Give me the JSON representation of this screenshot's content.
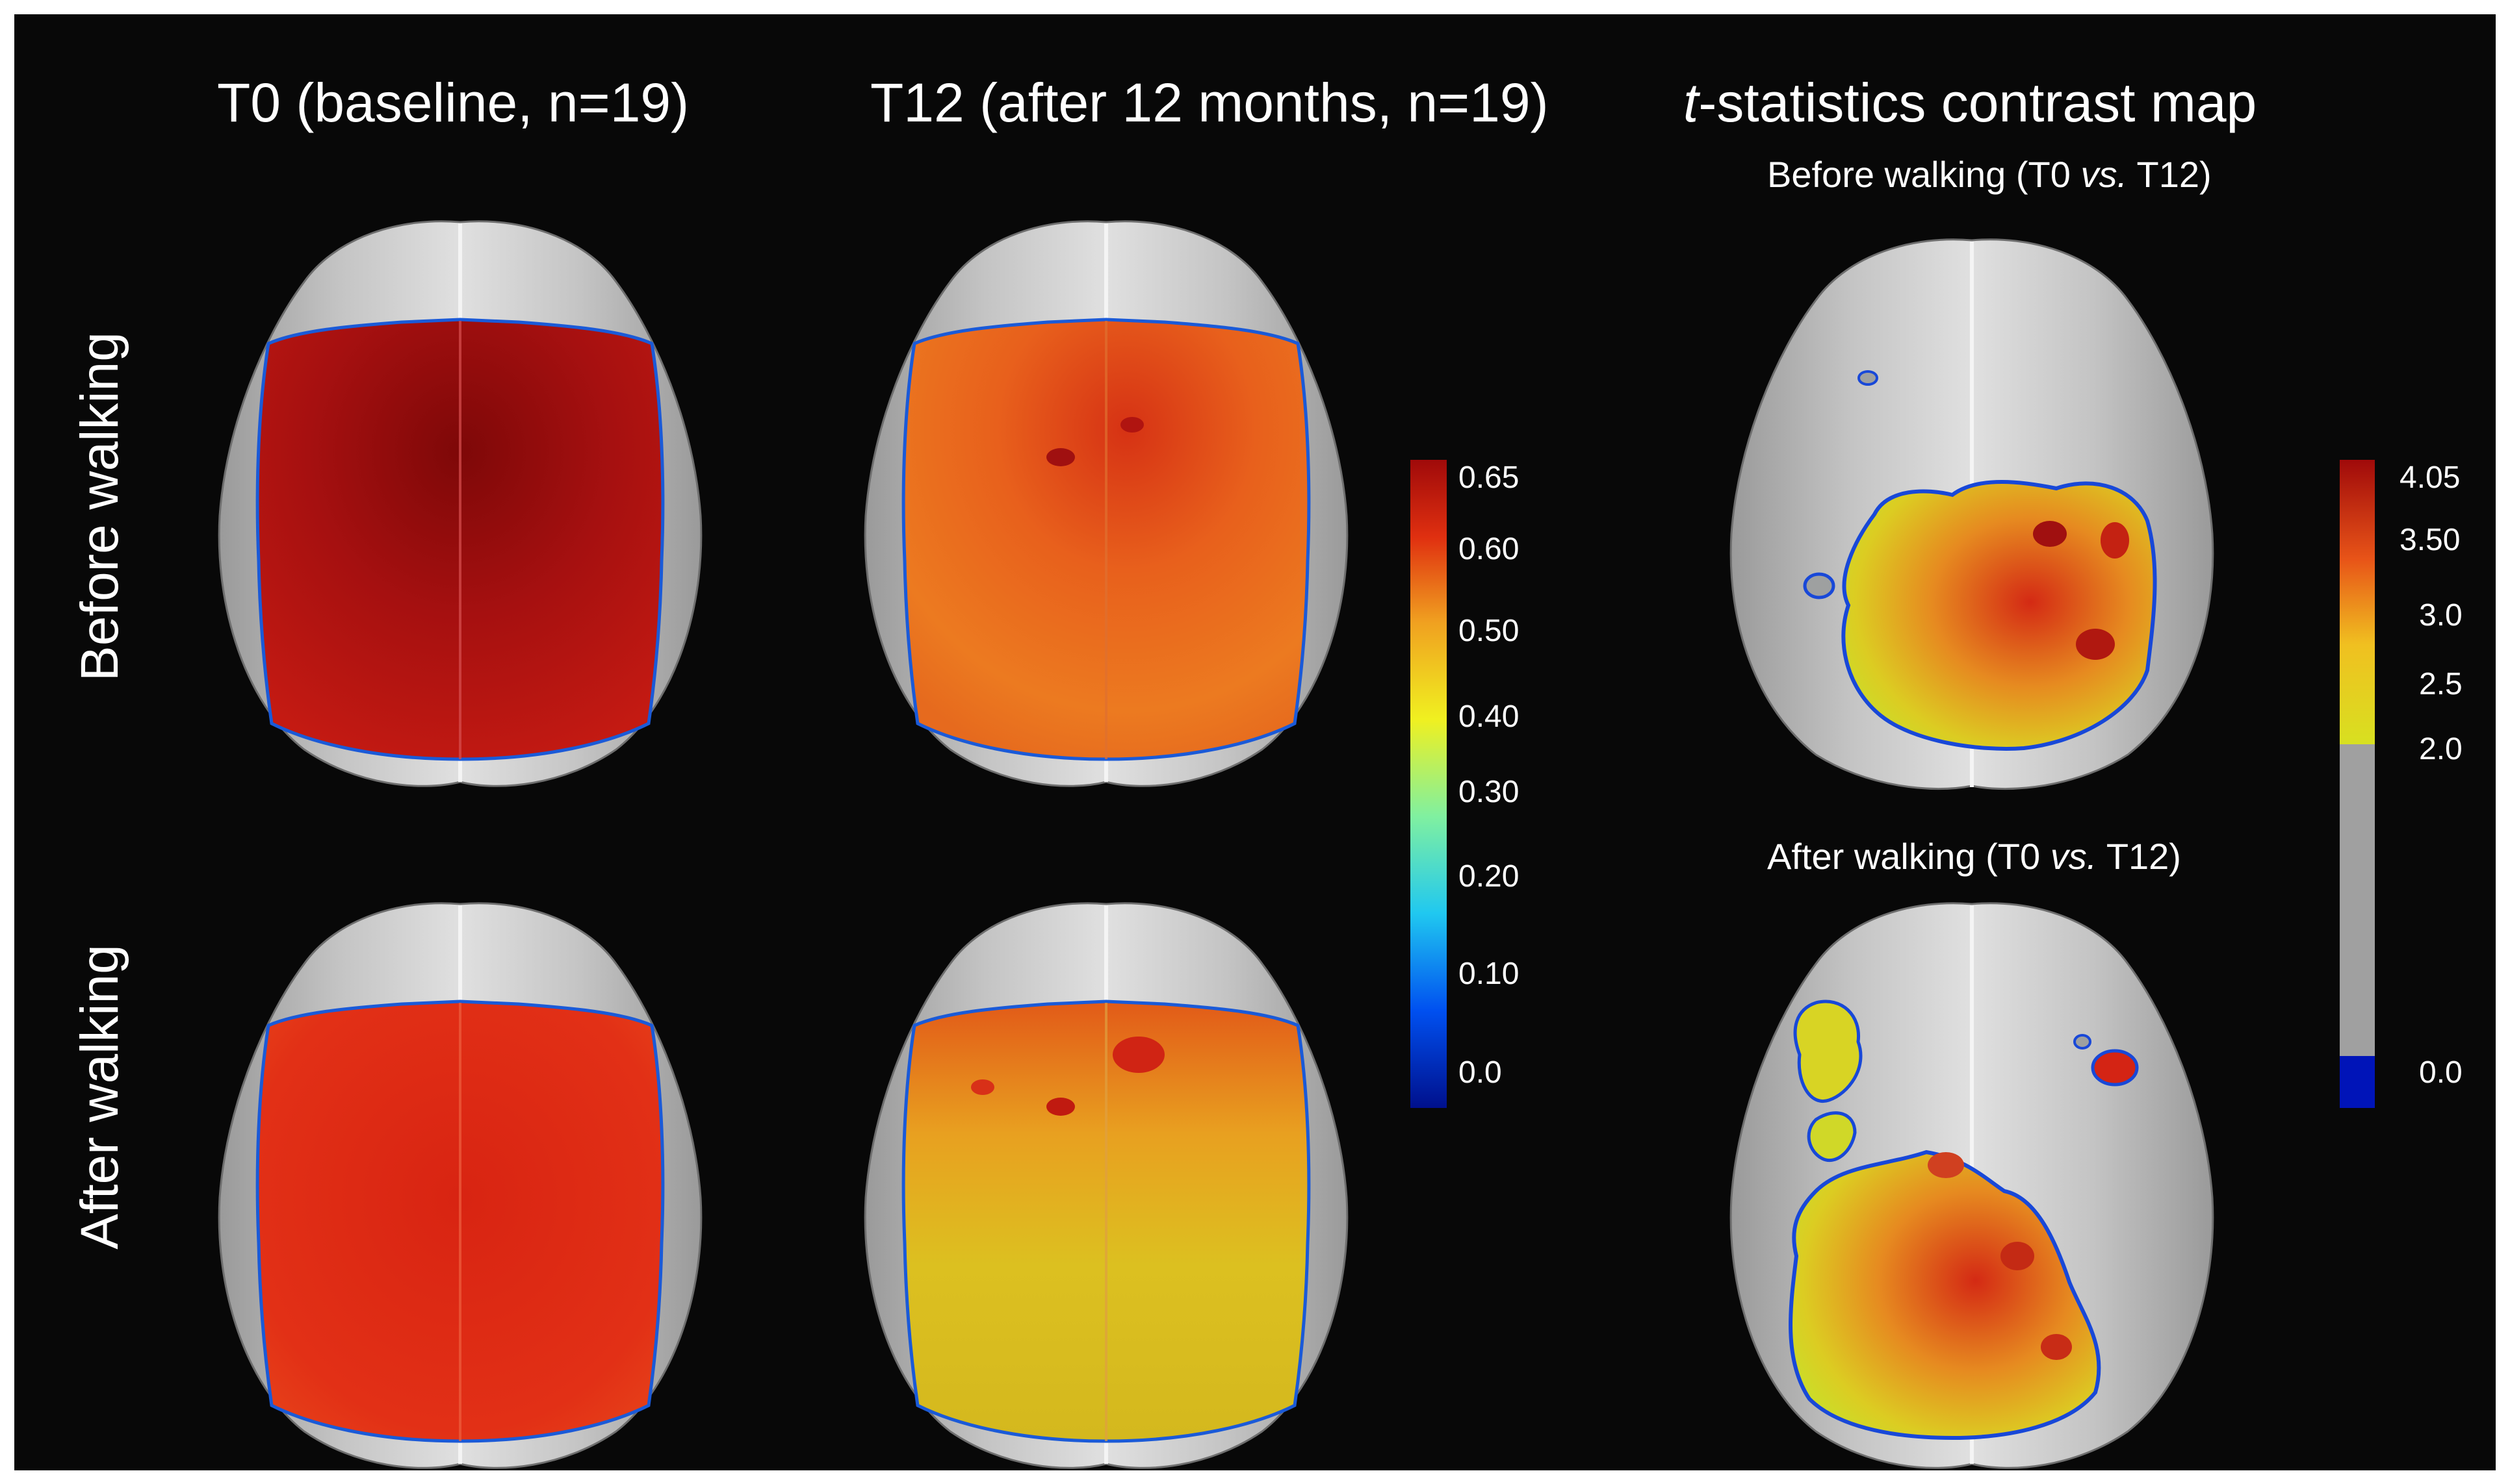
{
  "columns": {
    "t0": "T0 (baseline, n=19)",
    "t12": "T12 (after 12 months, n=19)",
    "contrast_italic": "t",
    "contrast_rest": "-statistics contrast map"
  },
  "rows": {
    "before": "Before walking",
    "after": "After walking"
  },
  "contrast_subtitles": {
    "before_pre": "Before walking (T0 ",
    "before_vs": "vs.",
    "before_post": " T12)",
    "after_pre": "After walking (T0 ",
    "after_vs": "vs.",
    "after_post": " T12)"
  },
  "colorbar_main": {
    "ticks": [
      "0.65",
      "0.60",
      "0.50",
      "0.40",
      "0.30",
      "0.20",
      "0.10",
      "0.0"
    ],
    "tick_values": [
      0.65,
      0.6,
      0.5,
      0.4,
      0.3,
      0.2,
      0.1,
      0.0
    ]
  },
  "colorbar_t": {
    "ticks": [
      "4.05",
      "3.50",
      "3.0",
      "2.5",
      "2.0",
      "0.0"
    ],
    "tick_values": [
      4.05,
      3.5,
      3.0,
      2.5,
      2.0,
      0.0
    ]
  },
  "colors": {
    "background": "#080808",
    "brain_gray": "#b8b8b8",
    "dark_red": "#9a1010",
    "red": "#d42010",
    "orange": "#e8641e",
    "yellow": "#e6d21e",
    "threshold_gray": "#a0a0a0",
    "blue": "#0010b0"
  }
}
